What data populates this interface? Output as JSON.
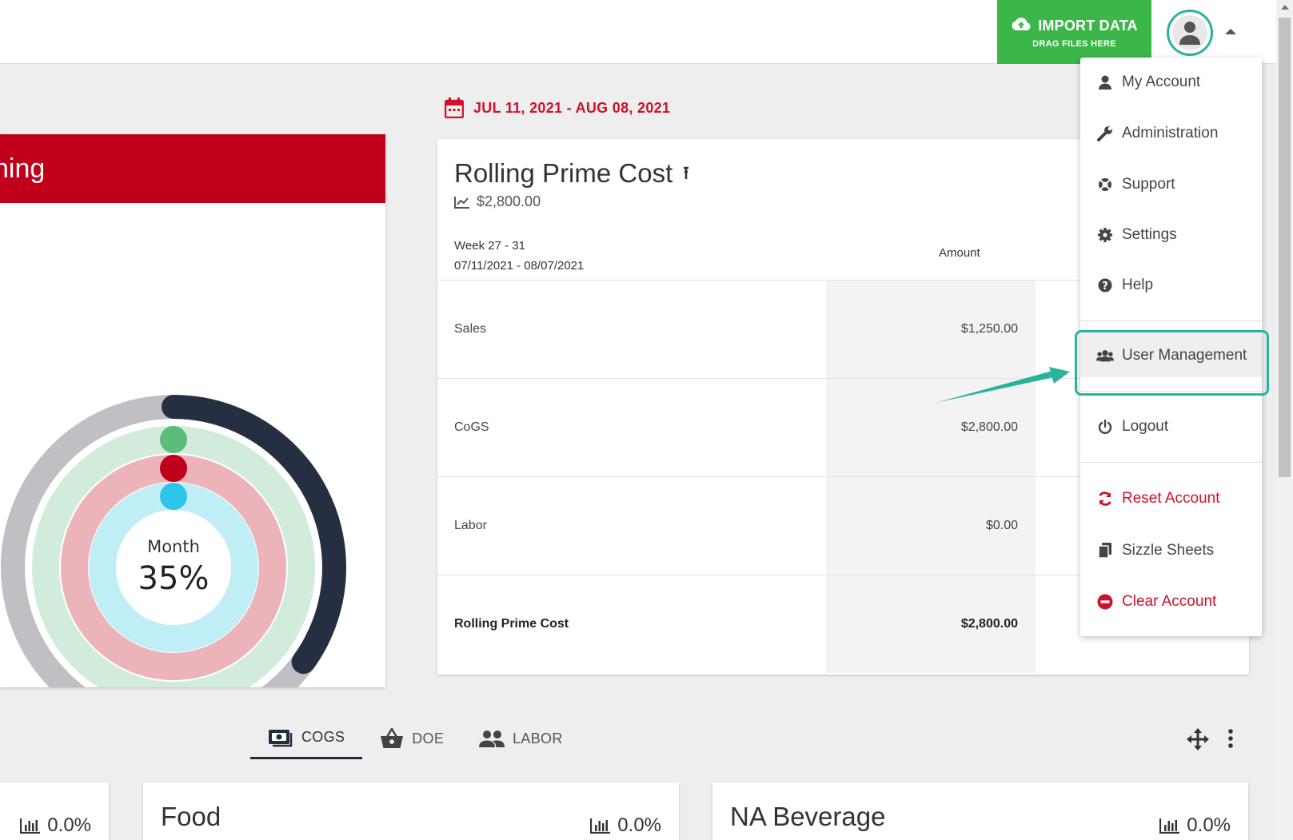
{
  "header": {
    "import_label": "IMPORT DATA",
    "import_sub": "DRAG FILES HERE"
  },
  "date_range": "JUL 11, 2021 - AUG 08, 2021",
  "left_card": {
    "title": "hing",
    "center_label": "Month",
    "center_value": "35%",
    "rings": [
      {
        "name": "outer",
        "fraction": 0.35
      },
      {
        "name": "green",
        "fraction": 0
      },
      {
        "name": "red",
        "fraction": 0
      },
      {
        "name": "blue",
        "fraction": 0
      }
    ]
  },
  "rolling_prime_cost": {
    "title": "Rolling Prime Cost",
    "total": "$2,800.00",
    "week_label": "Week 27 - 31",
    "date_label": "07/11/2021 - 08/07/2021",
    "amount_header": "Amount",
    "rows": [
      {
        "label": "Sales",
        "value": "$1,250.00"
      },
      {
        "label": "CoGS",
        "value": "$2,800.00"
      },
      {
        "label": "Labor",
        "value": "$0.00"
      },
      {
        "label": "Rolling Prime Cost",
        "value": "$2,800.00"
      }
    ]
  },
  "menu": {
    "items": [
      {
        "label": "My Account",
        "icon": "person-icon"
      },
      {
        "label": "Administration",
        "icon": "wrench-icon"
      },
      {
        "label": "Support",
        "icon": "lifebuoy-icon"
      },
      {
        "label": "Settings",
        "icon": "gear-icon"
      },
      {
        "label": "Help",
        "icon": "question-icon"
      },
      {
        "label": "User Management",
        "icon": "users-icon"
      },
      {
        "label": "Logout",
        "icon": "power-icon"
      },
      {
        "label": "Reset Account",
        "icon": "refresh-icon"
      },
      {
        "label": "Sizzle Sheets",
        "icon": "copy-icon"
      },
      {
        "label": "Clear Account",
        "icon": "minus-circle-icon"
      }
    ]
  },
  "tabs": [
    {
      "label": "COGS",
      "icon": "money-icon"
    },
    {
      "label": "DOE",
      "icon": "basket-icon"
    },
    {
      "label": "LABOR",
      "icon": "people-icon"
    }
  ],
  "bottom_cards": [
    {
      "title": "",
      "pct": "0.0%"
    },
    {
      "title": "Food",
      "pct": "0.0%"
    },
    {
      "title": "NA Beverage",
      "pct": "0.0%"
    }
  ],
  "colors": {
    "brand_red": "#c0001a",
    "import_green": "#3db649",
    "accent_teal": "#2ab39c",
    "navy": "#222d3c"
  }
}
